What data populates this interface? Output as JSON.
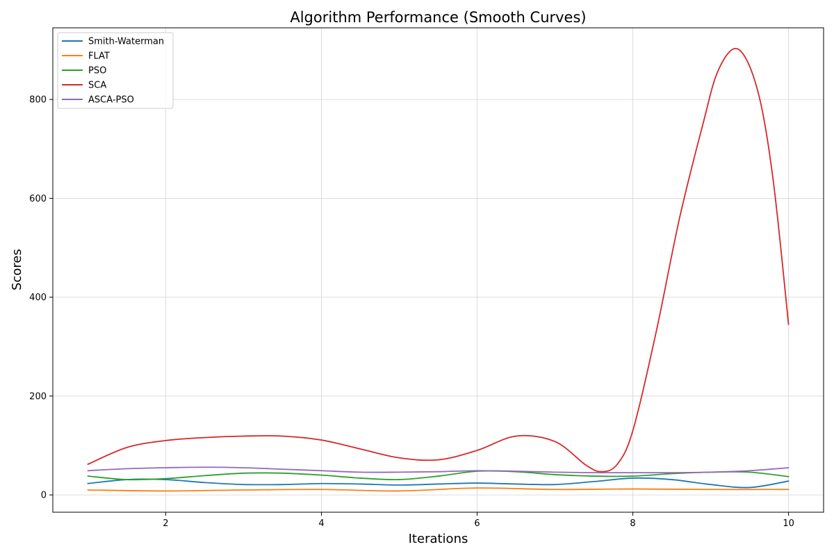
{
  "chart_data": {
    "type": "line",
    "title": "Algorithm Performance (Smooth Curves)",
    "xlabel": "Iterations",
    "ylabel": "Scores",
    "xlim": [
      0.55,
      10.45
    ],
    "ylim": [
      -35,
      945
    ],
    "xticks": [
      2,
      4,
      6,
      8,
      10
    ],
    "yticks": [
      0,
      200,
      400,
      600,
      800
    ],
    "grid": true,
    "legend_position": "top-left",
    "series": [
      {
        "name": "Smith-Waterman",
        "color": "#1f77b4",
        "x": [
          1,
          1.5,
          2,
          2.5,
          3,
          3.5,
          4,
          4.5,
          5,
          5.5,
          6,
          6.5,
          7,
          7.5,
          8,
          8.5,
          9,
          9.5,
          10
        ],
        "y": [
          23,
          31,
          31,
          25,
          21,
          21,
          23,
          22,
          20,
          22,
          24,
          22,
          21,
          27,
          34,
          31,
          21,
          15,
          28
        ]
      },
      {
        "name": "FLAT",
        "color": "#ff7f0e",
        "x": [
          1,
          2,
          3,
          4,
          5,
          6,
          7,
          8,
          9,
          10
        ],
        "y": [
          10,
          8,
          10,
          11,
          8,
          14,
          11,
          12,
          11,
          11
        ]
      },
      {
        "name": "PSO",
        "color": "#2ca02c",
        "x": [
          1,
          1.5,
          2,
          2.5,
          3,
          3.5,
          4,
          4.5,
          5,
          5.5,
          6,
          6.5,
          7,
          7.5,
          8,
          8.5,
          9,
          9.5,
          10
        ],
        "y": [
          38,
          31,
          33,
          39,
          44,
          44,
          40,
          34,
          31,
          38,
          48,
          47,
          41,
          38,
          38,
          43,
          46,
          46,
          37
        ]
      },
      {
        "name": "SCA",
        "color": "#d62728",
        "x": [
          1,
          1.5,
          2,
          2.5,
          3,
          3.5,
          4,
          4.5,
          5,
          5.5,
          6,
          6.5,
          7,
          7.4,
          7.6,
          7.8,
          8,
          8.3,
          8.6,
          8.9,
          9.1,
          9.35,
          9.6,
          9.8,
          10
        ],
        "y": [
          62,
          96,
          110,
          116,
          119,
          119,
          111,
          93,
          75,
          71,
          90,
          119,
          108,
          60,
          47,
          62,
          130,
          330,
          560,
          750,
          860,
          902,
          820,
          640,
          345
        ]
      },
      {
        "name": "ASCA-PSO",
        "color": "#9467bd",
        "x": [
          1,
          1.5,
          2,
          2.5,
          3,
          3.5,
          4,
          4.5,
          5,
          5.5,
          6,
          6.5,
          7,
          7.5,
          8,
          8.5,
          9,
          9.5,
          10
        ],
        "y": [
          49,
          53,
          55,
          56,
          55,
          52,
          49,
          46,
          46,
          47,
          49,
          48,
          46,
          45,
          45,
          45,
          46,
          49,
          55
        ]
      }
    ]
  }
}
